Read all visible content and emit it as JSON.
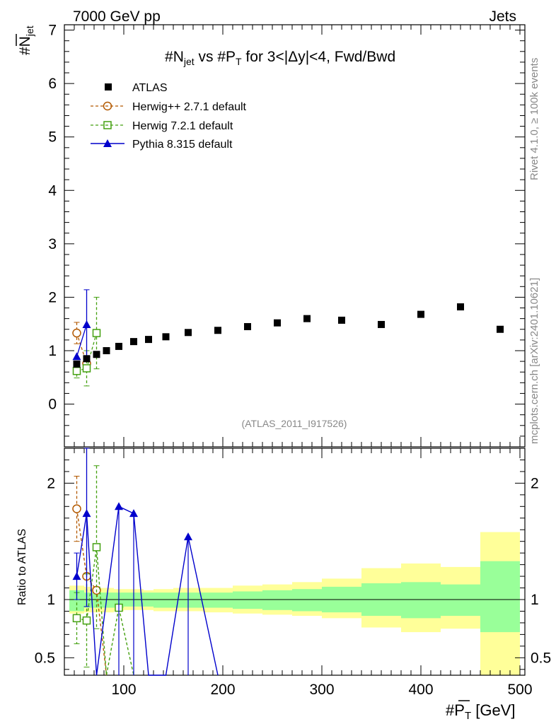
{
  "header": {
    "left": "7000 GeV pp",
    "right": "Jets",
    "side_top": "Rivet 4.1.0, ≥ 100k events",
    "side_bottom": "mcplots.cern.ch [arXiv:2401.10621]"
  },
  "chart_data": {
    "type": "scatter",
    "title": "#N̅jet vs #P̅T for 3<|Δy|<4, Fwd/Bwd",
    "title_parts": {
      "a": "#",
      "b": "N",
      "c": "jet",
      "d": " vs #",
      "e": "P",
      "f": "T",
      "g": " for 3<|Δy|<4, Fwd/Bwd"
    },
    "analysis_tag": "(ATLAS_2011_I917526)",
    "ylabel": {
      "main": "#",
      "bar": "N",
      "sub": "jet"
    },
    "xlabel": {
      "main": "#",
      "bar": "P",
      "sub": "T",
      "unit": " [GeV]"
    },
    "ratio_ylabel": "Ratio to ATLAS",
    "xlim": [
      40,
      505
    ],
    "ylim_main": [
      -0.8,
      7.1
    ],
    "ylim_ratio": [
      0.35,
      2.3
    ],
    "yticks_main": [
      "0",
      "1",
      "2",
      "3",
      "4",
      "5",
      "6",
      "7"
    ],
    "yticks_main_values": [
      0,
      1,
      2,
      3,
      4,
      5,
      6,
      7
    ],
    "xticks": [
      "100",
      "200",
      "300",
      "400",
      "500"
    ],
    "xticks_values": [
      100,
      200,
      300,
      400,
      500
    ],
    "yticks_ratio": [
      "0.5",
      "1",
      "2"
    ],
    "yticks_ratio_values": [
      0.5,
      1,
      2
    ],
    "legend": [
      {
        "key": "atlas",
        "label": "ATLAS"
      },
      {
        "key": "herwigpp",
        "label": "Herwig++ 2.7.1 default"
      },
      {
        "key": "herwig7",
        "label": "Herwig 7.2.1 default"
      },
      {
        "key": "pythia",
        "label": "Pythia 8.315 default"
      }
    ],
    "series": [
      {
        "name": "ATLAS",
        "key": "atlas",
        "color": "#000000",
        "x": [
          52.5,
          62.5,
          72.5,
          82.5,
          95,
          110,
          125,
          142.5,
          165,
          195,
          225,
          255,
          285,
          320,
          360,
          400,
          440,
          480
        ],
        "y": [
          0.75,
          0.85,
          0.93,
          1.0,
          1.08,
          1.17,
          1.21,
          1.26,
          1.34,
          1.38,
          1.45,
          1.52,
          1.6,
          1.57,
          1.49,
          1.68,
          1.82,
          1.4
        ]
      },
      {
        "name": "Herwig++ 2.7.1 default",
        "key": "herwigpp",
        "color": "#b35900",
        "x": [
          52.5,
          62.5
        ],
        "y": [
          1.33,
          0.76
        ],
        "err": [
          0.2,
          0.0
        ],
        "ratio_x": [
          52.5,
          62.5,
          72.5,
          82.5
        ],
        "ratio_y": [
          1.78,
          1.2,
          1.08,
          0.3
        ],
        "ratio_err": [
          0.28,
          0.0,
          0.0,
          0.0
        ]
      },
      {
        "name": "Herwig 7.2.1 default",
        "key": "herwig7",
        "color": "#44a010",
        "x": [
          52.5,
          62.5,
          72.5
        ],
        "y": [
          0.62,
          0.67,
          1.33
        ],
        "err": [
          0.13,
          0.33,
          0.67
        ],
        "ratio_x": [
          52.5,
          62.5,
          72.5,
          82.5,
          95,
          110
        ],
        "ratio_y": [
          0.84,
          0.82,
          1.45,
          0.3,
          0.93,
          0.3
        ],
        "ratio_err": [
          0.22,
          0.4,
          0.7,
          0,
          0,
          0
        ]
      },
      {
        "name": "Pythia 8.315 default",
        "key": "pythia",
        "color": "#0000cc",
        "x": [
          52.5,
          62.5
        ],
        "y": [
          0.89,
          1.49
        ],
        "err": [
          0.0,
          0.65
        ],
        "ratio_x": [
          52.5,
          62.5,
          72.5,
          95,
          110,
          125,
          142.5,
          165,
          195
        ],
        "ratio_y": [
          1.2,
          1.74,
          0.3,
          1.8,
          1.74,
          0.3,
          0.3,
          1.54,
          0.3
        ],
        "ratio_err": [
          0.2,
          0.8,
          0,
          0,
          0,
          0,
          0,
          0,
          0
        ]
      }
    ],
    "ratio_bands": {
      "edges": [
        45,
        60,
        70,
        80,
        90,
        100,
        120,
        130,
        150,
        180,
        210,
        240,
        270,
        300,
        340,
        380,
        420,
        460,
        500
      ],
      "stat_lo": [
        0.9,
        0.93,
        0.93,
        0.93,
        0.93,
        0.94,
        0.94,
        0.93,
        0.93,
        0.93,
        0.92,
        0.91,
        0.9,
        0.89,
        0.86,
        0.84,
        0.86,
        0.72
      ],
      "stat_hi": [
        1.08,
        1.06,
        1.06,
        1.06,
        1.06,
        1.06,
        1.06,
        1.06,
        1.06,
        1.06,
        1.07,
        1.08,
        1.09,
        1.11,
        1.14,
        1.15,
        1.13,
        1.33
      ],
      "tot_lo": [
        0.88,
        0.89,
        0.89,
        0.89,
        0.9,
        0.91,
        0.91,
        0.9,
        0.9,
        0.89,
        0.88,
        0.87,
        0.86,
        0.84,
        0.76,
        0.72,
        0.75,
        0.35
      ],
      "tot_hi": [
        1.12,
        1.11,
        1.1,
        1.1,
        1.09,
        1.09,
        1.08,
        1.09,
        1.1,
        1.1,
        1.12,
        1.13,
        1.15,
        1.18,
        1.27,
        1.31,
        1.28,
        1.58
      ]
    },
    "colors": {
      "band_stat": "#99ff99",
      "band_total": "#ffff99"
    }
  }
}
